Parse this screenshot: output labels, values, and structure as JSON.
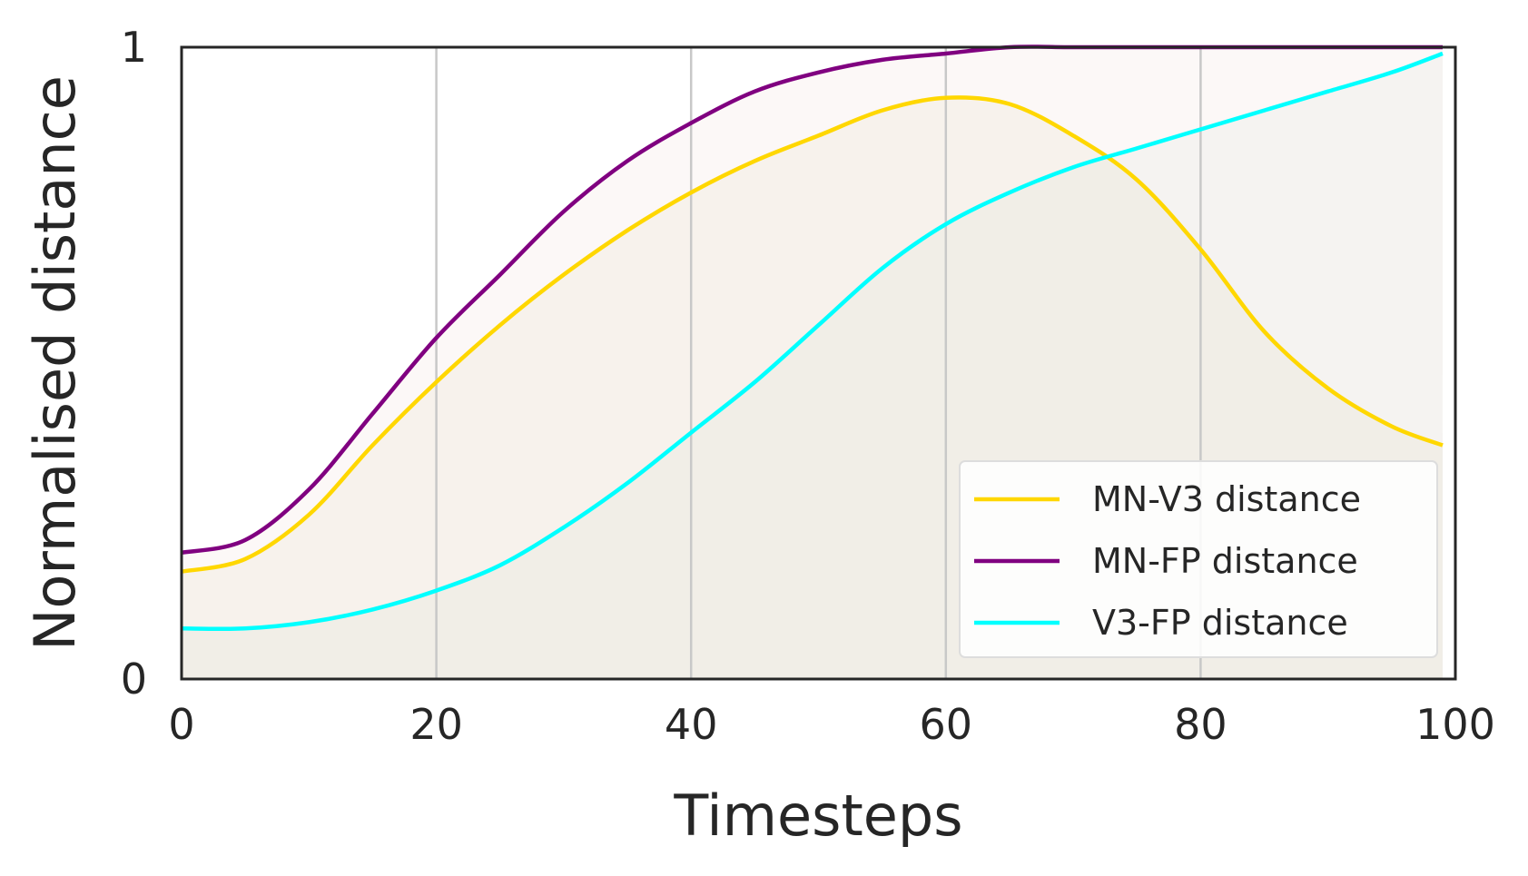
{
  "chart_data": {
    "type": "line",
    "title": "",
    "xlabel": "Timesteps",
    "ylabel": "Normalised distance",
    "xlim": [
      0,
      100
    ],
    "ylim": [
      0,
      1
    ],
    "xticks": [
      0,
      20,
      40,
      60,
      80,
      100
    ],
    "yticks": [
      0,
      1
    ],
    "xtick_labels": [
      "0",
      "20",
      "40",
      "60",
      "80",
      "100"
    ],
    "ytick_labels": [
      "0",
      "1"
    ],
    "grid": "vertical",
    "legend_position": "lower-right",
    "x": [
      0,
      5,
      10,
      15,
      20,
      25,
      30,
      35,
      40,
      45,
      50,
      55,
      60,
      65,
      70,
      75,
      80,
      85,
      90,
      95,
      99
    ],
    "series": [
      {
        "name": "MN-V3 distance",
        "color": "#FFD700",
        "values": [
          0.17,
          0.19,
          0.26,
          0.37,
          0.47,
          0.56,
          0.64,
          0.71,
          0.77,
          0.82,
          0.86,
          0.9,
          0.92,
          0.91,
          0.86,
          0.79,
          0.68,
          0.55,
          0.46,
          0.4,
          0.37
        ]
      },
      {
        "name": "MN-FP distance",
        "color": "#800080",
        "values": [
          0.2,
          0.22,
          0.3,
          0.42,
          0.54,
          0.64,
          0.74,
          0.82,
          0.88,
          0.93,
          0.96,
          0.98,
          0.99,
          1.0,
          1.0,
          1.0,
          1.0,
          1.0,
          1.0,
          1.0,
          1.0
        ]
      },
      {
        "name": "V3-FP distance",
        "color": "#00FFFF",
        "values": [
          0.08,
          0.08,
          0.09,
          0.11,
          0.14,
          0.18,
          0.24,
          0.31,
          0.39,
          0.47,
          0.56,
          0.65,
          0.72,
          0.77,
          0.81,
          0.84,
          0.87,
          0.9,
          0.93,
          0.96,
          0.99
        ]
      }
    ]
  }
}
